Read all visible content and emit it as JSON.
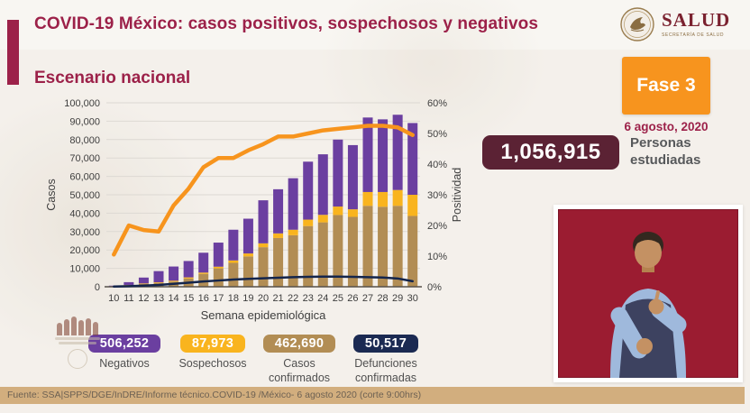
{
  "header": {
    "title": "COVID-19 México: casos positivos, sospechosos y negativos",
    "logo": {
      "name": "SALUD",
      "subtitle": "SECRETARÍA DE SALUD"
    }
  },
  "phase": {
    "label": "Fase 3",
    "date": "6 agosto, 2020"
  },
  "studied": {
    "value": "1,056,915",
    "label1": "Personas",
    "label2": "estudiadas"
  },
  "chart_data": {
    "type": "bar+line",
    "title": "Escenario nacional",
    "xlabel": "Semana epidemiológica",
    "ylabel_left": "Casos",
    "ylabel_right": "Positividad",
    "ylim_left": [
      0,
      100000
    ],
    "ylim_right": [
      0,
      60
    ],
    "grid": true,
    "x": [
      10,
      11,
      12,
      13,
      14,
      15,
      16,
      17,
      18,
      19,
      20,
      21,
      22,
      23,
      24,
      25,
      26,
      27,
      28,
      29,
      30
    ],
    "xticks": [
      "10",
      "11",
      "12",
      "13",
      "14",
      "15",
      "16",
      "17",
      "18",
      "19",
      "20",
      "21",
      "22",
      "23",
      "24",
      "25",
      "26",
      "27",
      "28",
      "29",
      "30"
    ],
    "yticks_left": [
      "100,000",
      "90,000",
      "80,000",
      "70,000",
      "60,000",
      "50,000",
      "40,000",
      "30,000",
      "20,000",
      "10,000",
      "0"
    ],
    "yticks_right": [
      "60%",
      "50%",
      "40%",
      "30%",
      "20%",
      "10%",
      "0%"
    ],
    "series": [
      {
        "name": "Casos confirmados",
        "type": "bar-stack",
        "axis": "left",
        "color": "#b28d54",
        "values": [
          200,
          800,
          1500,
          2000,
          2800,
          4500,
          7000,
          10000,
          13000,
          16500,
          21500,
          26500,
          28000,
          33000,
          35000,
          39000,
          38000,
          44000,
          43500,
          44000,
          38500
        ]
      },
      {
        "name": "Sospechosos",
        "type": "bar-stack",
        "axis": "left",
        "color": "#f9b41e",
        "values": [
          100,
          200,
          300,
          400,
          500,
          600,
          700,
          900,
          1300,
          1600,
          2100,
          2500,
          3000,
          3500,
          4100,
          4600,
          4100,
          7500,
          8000,
          8600,
          11500
        ]
      },
      {
        "name": "Negativos",
        "type": "bar-stack",
        "axis": "left",
        "color": "#6b3fa0",
        "values": [
          300,
          1500,
          3200,
          6100,
          7700,
          8900,
          10800,
          13100,
          16700,
          18900,
          23400,
          24000,
          28000,
          31500,
          32900,
          36400,
          34900,
          40500,
          39500,
          40900,
          39000
        ]
      },
      {
        "name": "Defunciones confirmadas",
        "type": "line",
        "axis": "left",
        "color": "#14254c",
        "values": [
          100,
          300,
          600,
          1000,
          1600,
          2200,
          2900,
          3400,
          3900,
          4300,
          4600,
          4900,
          5200,
          5400,
          5500,
          5500,
          5400,
          5200,
          5000,
          4500,
          3000
        ]
      },
      {
        "name": "Positividad",
        "type": "line",
        "axis": "right",
        "color": "#f7941d",
        "values": [
          10.5,
          20,
          18.5,
          18,
          26.5,
          32,
          39,
          42,
          42,
          44.5,
          46.5,
          49,
          49,
          50,
          51,
          51.5,
          52,
          52.5,
          52.5,
          52,
          49.5
        ]
      }
    ]
  },
  "stats": {
    "items": [
      {
        "value": "506,252",
        "label": "Negativos",
        "color": "#6b3fa0"
      },
      {
        "value": "87,973",
        "label": "Sospechosos",
        "color": "#f9b41e"
      },
      {
        "value": "462,690",
        "label": "Casos confirmados",
        "color": "#b28d54"
      },
      {
        "value": "50,517",
        "label": "Defunciones confirmadas",
        "color": "#1b2a52"
      }
    ]
  },
  "footer": {
    "source": "Fuente: SSA|SPPS/DGE/InDRE/Informe técnico.COVID-19 /México- 6 agosto 2020 (corte 9:00hrs)"
  },
  "colors": {
    "burgundy": "#9c2149",
    "wine": "#5b2234",
    "phase_orange": "#f7941e",
    "footer_tan": "#d2ae7e",
    "video_crimson": "#9b1c31",
    "background": "#f8f6f2"
  }
}
